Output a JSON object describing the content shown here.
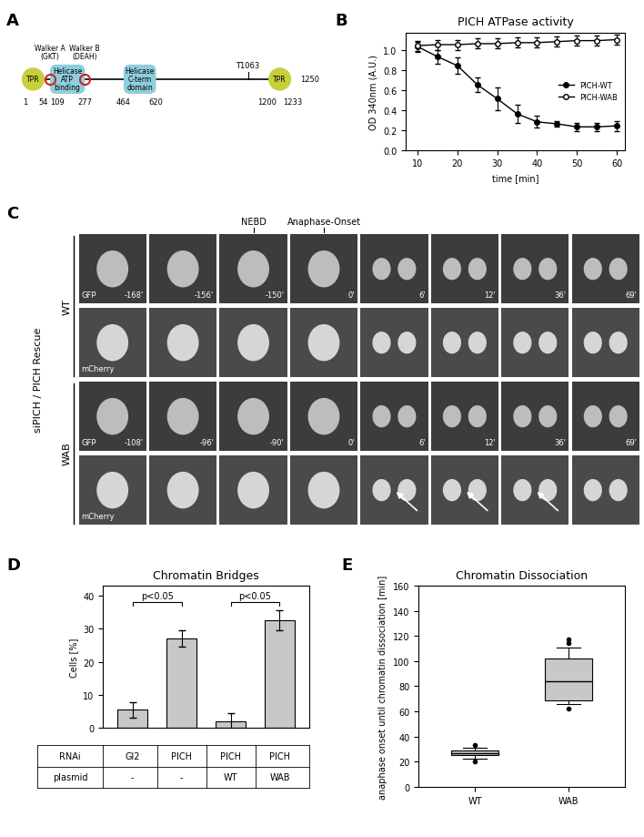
{
  "panel_labels": [
    "A",
    "B",
    "C",
    "D",
    "E"
  ],
  "protein_diagram": {
    "domains": [
      {
        "label": "TPR",
        "start": 1,
        "end": 54,
        "kind": "TPR"
      },
      {
        "label": "Helicase ATP binding",
        "start": 109,
        "end": 277,
        "kind": "helicase"
      },
      {
        "label": "Helicase C-term domain",
        "start": 464,
        "end": 620,
        "kind": "helicase"
      },
      {
        "label": "TPR",
        "start": 1200,
        "end": 1233,
        "kind": "TPR"
      }
    ],
    "motifs": [
      {
        "label": "Walker A (GKT)",
        "position": 109
      },
      {
        "label": "Walker B (DEAH)",
        "position": 277
      }
    ],
    "sites": [
      {
        "label": "T1063",
        "position": 1063
      }
    ],
    "coordinates": [
      1,
      54,
      109,
      277,
      464,
      620,
      1200,
      1233,
      1250
    ]
  },
  "image_panel": {
    "condition_label": "siPICH / PICH Rescue",
    "events": [
      {
        "text": "NEBD",
        "frame": 2
      },
      {
        "text": "Anaphase-Onset",
        "frame": 3
      }
    ],
    "rows": [
      {
        "name": "WT",
        "channels": [
          "GFP",
          "mCherry"
        ],
        "times": [
          "-168'",
          "-156'",
          "-150'",
          "0'",
          "6'",
          "12'",
          "36'",
          "69'"
        ]
      },
      {
        "name": "WAB",
        "channels": [
          "GFP",
          "mCherry"
        ],
        "times": [
          "-108'",
          "-96'",
          "-90'",
          "0'",
          "6'",
          "12'",
          "36'",
          "69'"
        ],
        "arrows": {
          "channel": "mCherry",
          "frames": [
            4,
            5,
            6
          ]
        }
      }
    ]
  },
  "chart_data": [
    {
      "type": "line",
      "title": "PICH ATPase activity",
      "x_label": "time [min]",
      "y_label": "OD 340nm (A.U.)",
      "x": [
        10,
        15,
        20,
        25,
        30,
        35,
        40,
        45,
        50,
        55,
        60
      ],
      "series": [
        {
          "name": "PICH-WT",
          "color": "#000000",
          "marker": "filled_circle",
          "values": [
            1.03,
            0.93,
            0.84,
            0.65,
            0.51,
            0.36,
            0.28,
            0.26,
            0.23,
            0.23,
            0.24
          ],
          "errors": [
            0.05,
            0.07,
            0.08,
            0.07,
            0.11,
            0.09,
            0.06,
            0.03,
            0.04,
            0.04,
            0.05
          ]
        },
        {
          "name": "PICH-WAB",
          "color": "#000000",
          "marker": "open_circle",
          "values": [
            1.04,
            1.05,
            1.05,
            1.06,
            1.06,
            1.07,
            1.07,
            1.08,
            1.09,
            1.09,
            1.1
          ],
          "errors": [
            0.05,
            0.05,
            0.05,
            0.05,
            0.05,
            0.05,
            0.05,
            0.05,
            0.05,
            0.05,
            0.05
          ]
        }
      ],
      "xlim": [
        7,
        62
      ],
      "xticks": [
        10,
        20,
        30,
        40,
        50,
        60
      ],
      "ylim": [
        0,
        1.17
      ],
      "yticks": [
        {
          "value": 0,
          "label": "0.0"
        },
        0.2,
        0.4,
        0.6,
        0.8,
        {
          "value": 1,
          "label": "1.0"
        }
      ],
      "legend": "center right"
    },
    {
      "type": "bar",
      "title": "Chromatin Bridges",
      "y_label": "Cells [%]",
      "categories": [
        null,
        null,
        null,
        null
      ],
      "values": [
        5.5,
        27,
        2,
        32.5
      ],
      "errors": [
        2.3,
        2.5,
        2.5,
        3
      ],
      "color": "#c8c8c8",
      "ylim": [
        0,
        43
      ],
      "yticks": [
        0,
        10,
        20,
        30,
        40
      ],
      "table": {
        "row_labels": [
          "RNAi",
          "plasmid"
        ],
        "rows": [
          [
            "Gl2",
            "PICH",
            "PICH",
            "PICH"
          ],
          [
            "-",
            "-",
            "WT",
            "WAB"
          ]
        ]
      },
      "annotations": [
        {
          "text": "p<0.05",
          "between": [
            0,
            1
          ]
        },
        {
          "text": "p<0.05",
          "between": [
            2,
            3
          ]
        }
      ]
    },
    {
      "type": "box",
      "title": "Chromatin Dissociation",
      "y_label": "anaphase onset until chromatin dissociation [min]",
      "categories": [
        "WT",
        "WAB"
      ],
      "color": "#c8c8c8",
      "stats": [
        {
          "whislo": 22,
          "q1": 25,
          "med": 27,
          "q3": 29,
          "whishi": 31,
          "fliers": [
            20,
            33
          ]
        },
        {
          "whislo": 66,
          "q1": 69,
          "med": 84,
          "q3": 102,
          "whishi": 111,
          "fliers": [
            62,
            114,
            117
          ]
        }
      ],
      "ylim": [
        0,
        160
      ],
      "yticks": [
        0,
        20,
        40,
        60,
        80,
        100,
        120,
        140,
        160
      ]
    }
  ]
}
